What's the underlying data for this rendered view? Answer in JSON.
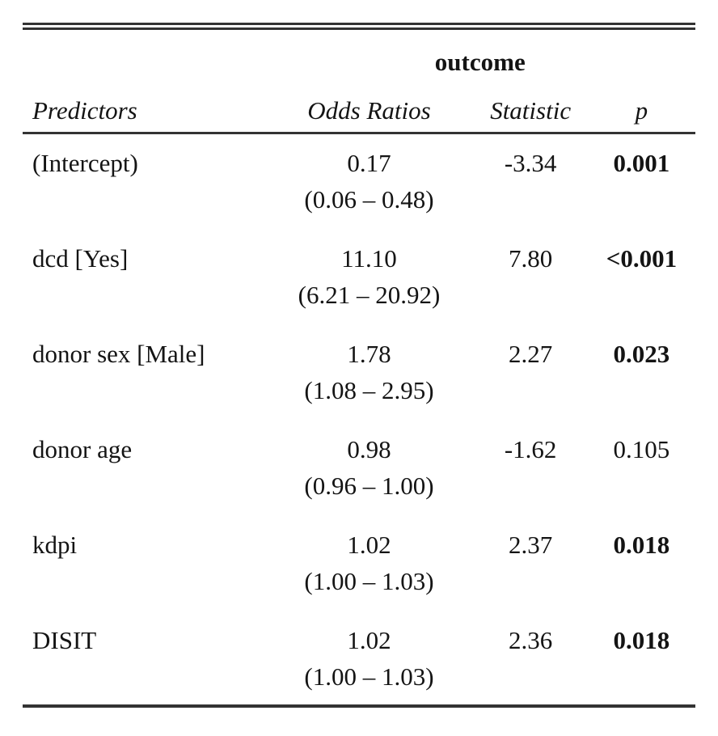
{
  "chart_data": {
    "type": "table",
    "title": "outcome",
    "columns": [
      "Predictors",
      "Odds Ratios",
      "Statistic",
      "p"
    ],
    "rows": [
      {
        "predictor": "(Intercept)",
        "odds_ratio": "0.17",
        "ci": "(0.06 – 0.48)",
        "statistic": "-3.34",
        "p": "0.001",
        "p_bold": true
      },
      {
        "predictor": "dcd [Yes]",
        "odds_ratio": "11.10",
        "ci": "(6.21 – 20.92)",
        "statistic": "7.80",
        "p": "<0.001",
        "p_bold": true
      },
      {
        "predictor": "donor sex [Male]",
        "odds_ratio": "1.78",
        "ci": "(1.08 – 2.95)",
        "statistic": "2.27",
        "p": "0.023",
        "p_bold": true
      },
      {
        "predictor": "donor age",
        "odds_ratio": "0.98",
        "ci": "(0.96 – 1.00)",
        "statistic": "-1.62",
        "p": "0.105",
        "p_bold": false
      },
      {
        "predictor": "kdpi",
        "odds_ratio": "1.02",
        "ci": "(1.00 – 1.03)",
        "statistic": "2.37",
        "p": "0.018",
        "p_bold": true
      },
      {
        "predictor": "DISIT",
        "odds_ratio": "1.02",
        "ci": "(1.00 – 1.03)",
        "statistic": "2.36",
        "p": "0.018",
        "p_bold": true
      }
    ],
    "layout": {
      "top_rule": "double",
      "header_rule": "single",
      "bottom_rule": "single"
    },
    "colors": {
      "text": "#141414",
      "rule": "#333333",
      "background": "#ffffff"
    }
  }
}
